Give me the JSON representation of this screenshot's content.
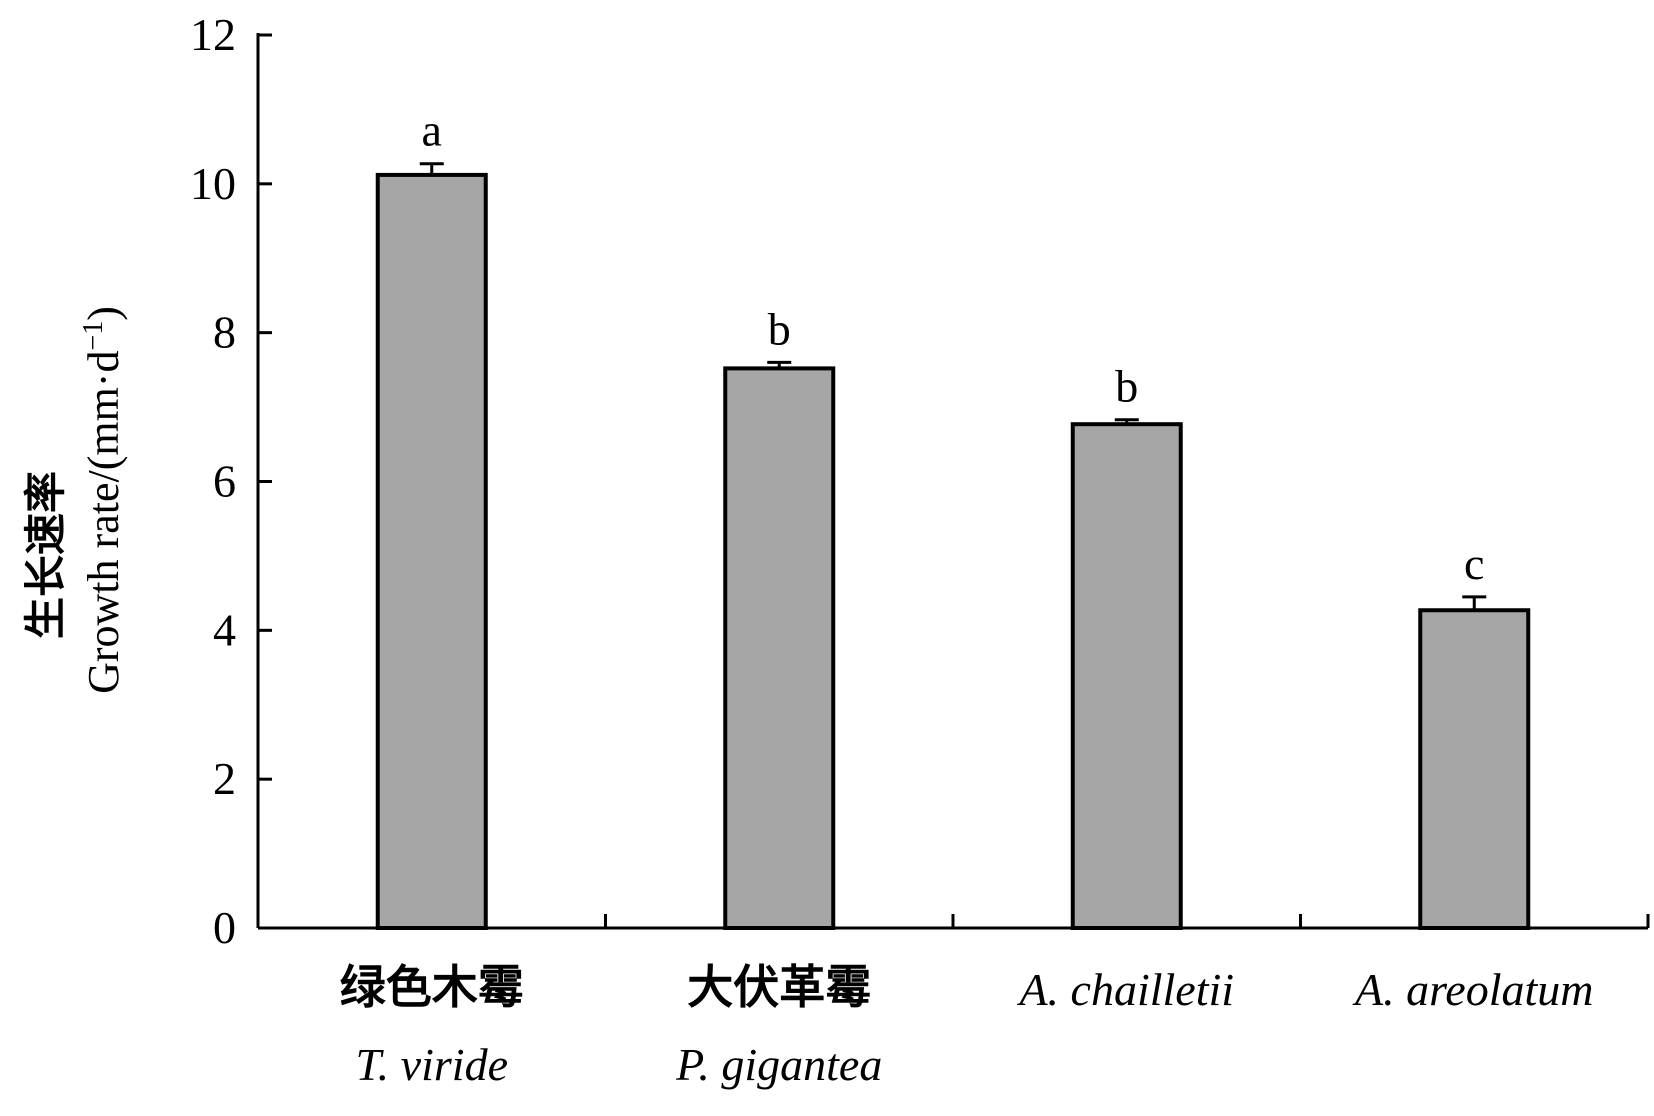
{
  "chart_data": {
    "type": "bar",
    "categories": [
      {
        "cn": "绿色木霉",
        "latin": "T. viride"
      },
      {
        "cn": "大伏革霉",
        "latin": "P. gigantea"
      },
      {
        "cn": "",
        "latin": "A. chailletii"
      },
      {
        "cn": "",
        "latin": "A. areolatum"
      }
    ],
    "values": [
      10.12,
      7.52,
      6.77,
      4.27
    ],
    "errors": [
      0.15,
      0.08,
      0.06,
      0.18
    ],
    "significance": [
      "a",
      "b",
      "b",
      "c"
    ],
    "ylabel": {
      "cn": "生长速率",
      "en": "Growth rate/(mm·d",
      "sup": "−1",
      "close": ")"
    },
    "xlabel": "",
    "ylim": [
      0,
      12
    ],
    "yticks": [
      "0",
      "2",
      "4",
      "6",
      "8",
      "10",
      "12"
    ],
    "grid": false,
    "bar_color": "#a6a6a6",
    "edge_color": "#000000"
  }
}
